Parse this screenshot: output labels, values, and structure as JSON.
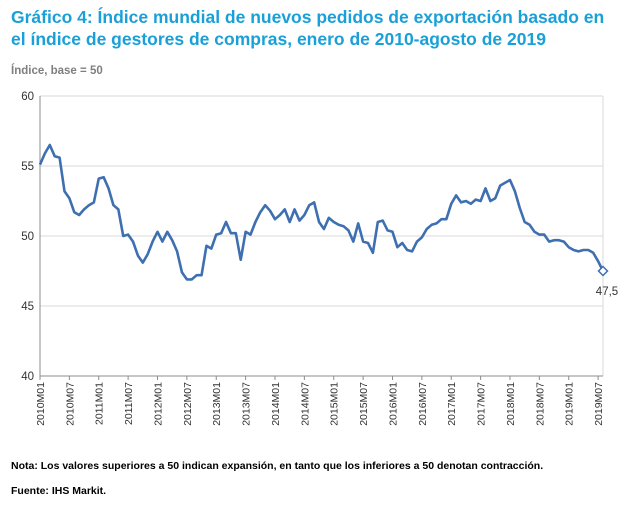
{
  "header": {
    "title": "Gráfico 4: Índice mundial de nuevos pedidos de exportación basado en el índice de gestores de compras, enero de 2010-agosto de 2019",
    "unit_label": "Índice, base = 50"
  },
  "footer": {
    "note": "Nota: Los valores superiores a 50 indican expansión, en tanto que los inferiores a 50 denotan contracción.",
    "source": "Fuente: IHS Markit."
  },
  "colors": {
    "line": "#3e6fb0",
    "grid": "#d9d9d9",
    "title": "#1aa0d8"
  },
  "chart_data": {
    "type": "line",
    "title": "Gráfico 4: Índice mundial de nuevos pedidos de exportación basado en el índice de gestores de compras, enero de 2010-agosto de 2019",
    "ylabel": "Índice, base = 50",
    "xlabel": "",
    "ylim": [
      40,
      60
    ],
    "yticks": [
      40,
      45,
      50,
      55,
      60
    ],
    "grid": true,
    "x_tick_labels": [
      "2010M01",
      "2010M07",
      "2011M01",
      "2011M07",
      "2012M01",
      "2012M07",
      "2013M01",
      "2013M07",
      "2014M01",
      "2014M07",
      "2015M01",
      "2015M07",
      "2016M01",
      "2016M07",
      "2017M01",
      "2017M07",
      "2018M01",
      "2018M07",
      "2019M01",
      "2019M07"
    ],
    "end_label": "47,5",
    "series": [
      {
        "name": "Índice mundial de nuevos pedidos de exportación",
        "start": "2010M01",
        "end": "2019M08",
        "values": [
          55.1,
          55.9,
          56.5,
          55.7,
          55.6,
          53.2,
          52.7,
          51.7,
          51.5,
          51.9,
          52.2,
          52.4,
          54.1,
          54.2,
          53.4,
          52.2,
          51.9,
          50.0,
          50.1,
          49.6,
          48.6,
          48.1,
          48.7,
          49.6,
          50.3,
          49.6,
          50.3,
          49.7,
          48.9,
          47.4,
          46.9,
          46.9,
          47.2,
          47.2,
          49.3,
          49.1,
          50.1,
          50.2,
          51.0,
          50.2,
          50.2,
          48.3,
          50.3,
          50.1,
          51.0,
          51.7,
          52.2,
          51.8,
          51.2,
          51.5,
          51.9,
          51.0,
          51.9,
          51.1,
          51.5,
          52.2,
          52.4,
          51.0,
          50.5,
          51.3,
          51.0,
          50.8,
          50.7,
          50.4,
          49.6,
          50.9,
          49.6,
          49.5,
          48.8,
          51.0,
          51.1,
          50.4,
          50.3,
          49.2,
          49.5,
          49.0,
          48.9,
          49.6,
          49.9,
          50.5,
          50.8,
          50.9,
          51.2,
          51.2,
          52.3,
          52.9,
          52.4,
          52.5,
          52.3,
          52.6,
          52.5,
          53.4,
          52.5,
          52.7,
          53.6,
          53.8,
          54.0,
          53.2,
          52.0,
          51.0,
          50.8,
          50.3,
          50.1,
          50.1,
          49.6,
          49.7,
          49.7,
          49.6,
          49.2,
          49.0,
          48.9,
          49.0,
          49.0,
          48.8,
          48.2,
          47.5
        ]
      }
    ]
  }
}
